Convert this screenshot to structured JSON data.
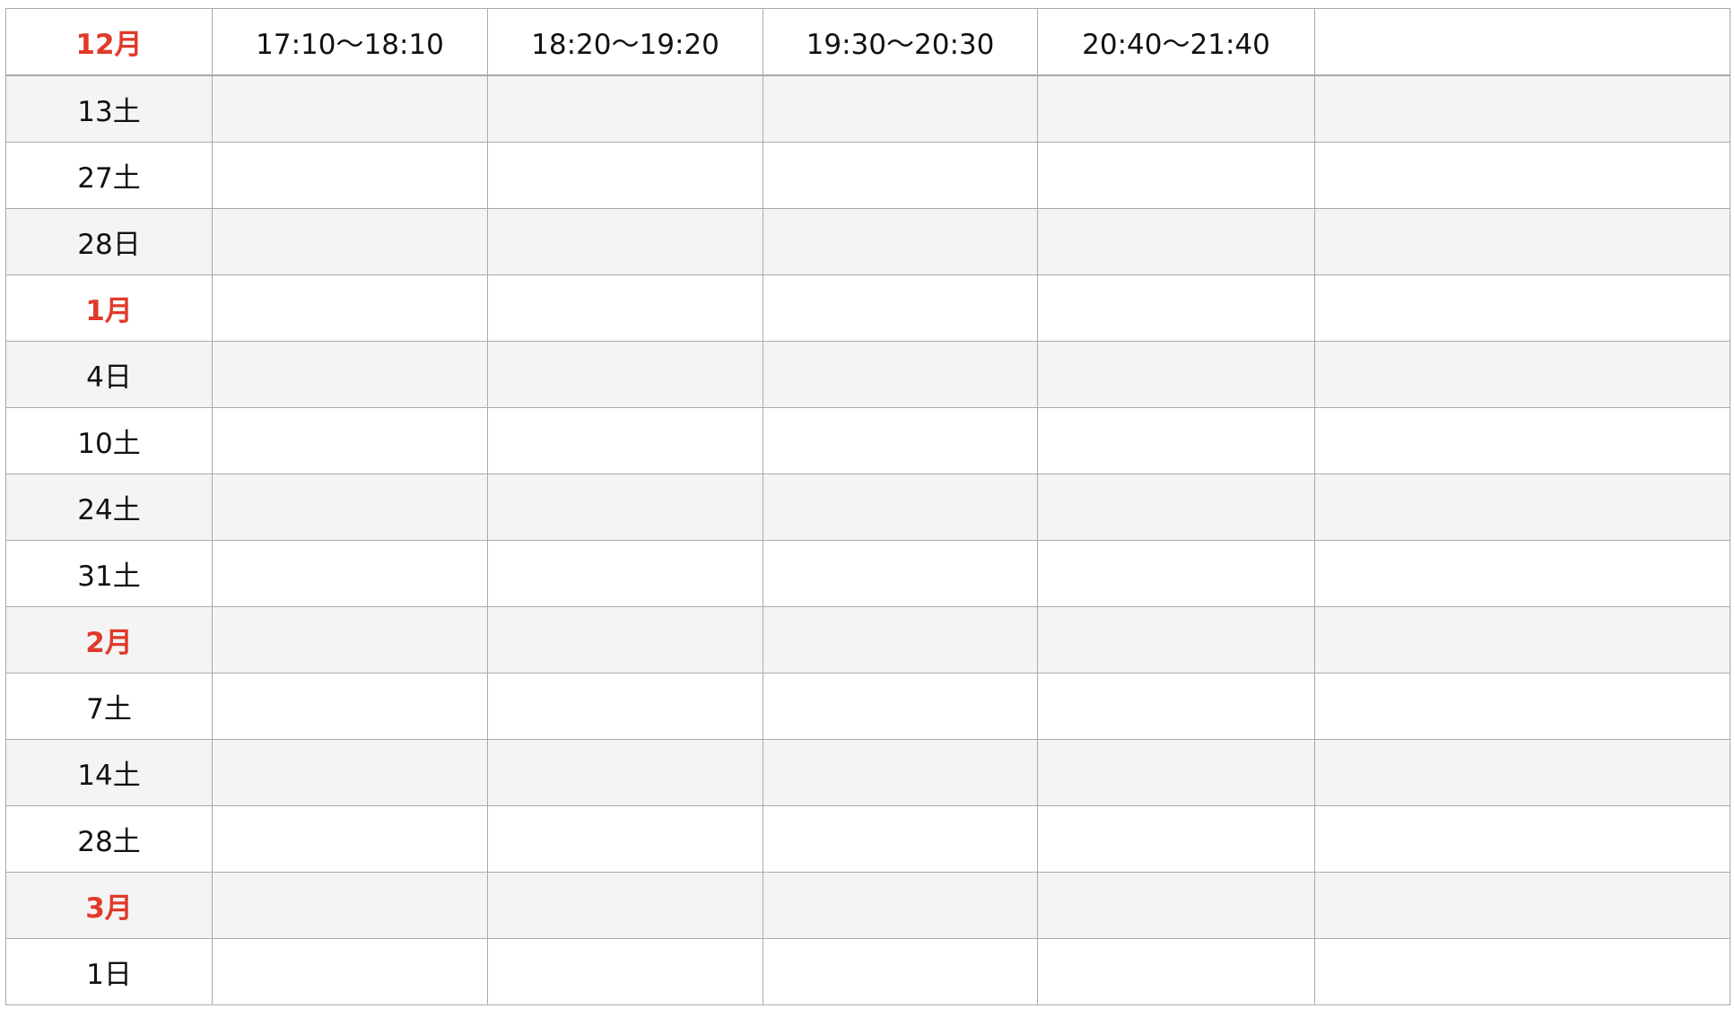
{
  "colors": {
    "month_text": "#e03a2a",
    "stripe": "#f4f4f4",
    "border": "#aaaaaa"
  },
  "header": {
    "month": "12月",
    "time_slots": [
      "17:10〜18:10",
      "18:20〜19:20",
      "19:30〜20:30",
      "20:40〜21:40",
      ""
    ]
  },
  "rows": [
    {
      "label": "13土",
      "type": "day"
    },
    {
      "label": "27土",
      "type": "day"
    },
    {
      "label": "28日",
      "type": "day"
    },
    {
      "label": "1月",
      "type": "month"
    },
    {
      "label": "4日",
      "type": "day"
    },
    {
      "label": "10土",
      "type": "day"
    },
    {
      "label": "24土",
      "type": "day"
    },
    {
      "label": "31土",
      "type": "day"
    },
    {
      "label": "2月",
      "type": "month"
    },
    {
      "label": "7土",
      "type": "day"
    },
    {
      "label": "14土",
      "type": "day"
    },
    {
      "label": "28土",
      "type": "day"
    },
    {
      "label": "3月",
      "type": "month"
    },
    {
      "label": "1日",
      "type": "day"
    }
  ]
}
